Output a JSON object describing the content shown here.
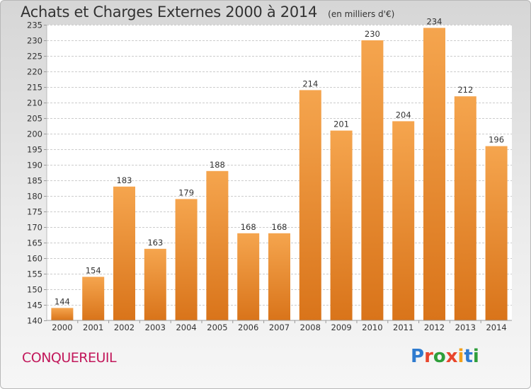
{
  "header": {
    "title": "Achats et Charges Externes 2000 à 2014",
    "unit": "(en milliers d'€)"
  },
  "footer": {
    "commune": "CONQUEREUIL",
    "logo": "Proxiti"
  },
  "colors": {
    "bar_top": "#f5a54e",
    "bar_bottom": "#d9741a",
    "commune": "#c2185b",
    "logo_letters": [
      "#2e7bcf",
      "#e8452c",
      "#2e9e3a",
      "#e8452c",
      "#f2a11b",
      "#2e7bcf",
      "#2e9e3a"
    ]
  },
  "chart_data": {
    "type": "bar",
    "title": "Achats et Charges Externes 2000 à 2014",
    "xlabel": "",
    "ylabel": "",
    "categories": [
      "2000",
      "2001",
      "2002",
      "2003",
      "2004",
      "2005",
      "2006",
      "2007",
      "2008",
      "2009",
      "2010",
      "2011",
      "2012",
      "2013",
      "2014"
    ],
    "values": [
      144,
      154,
      183,
      163,
      179,
      188,
      168,
      168,
      214,
      201,
      230,
      204,
      234,
      212,
      196
    ],
    "ylim": [
      140,
      235
    ],
    "yticks": [
      140,
      145,
      150,
      155,
      160,
      165,
      170,
      175,
      180,
      185,
      190,
      195,
      200,
      205,
      210,
      215,
      220,
      225,
      230,
      235
    ],
    "grid": true,
    "legend": "none"
  }
}
